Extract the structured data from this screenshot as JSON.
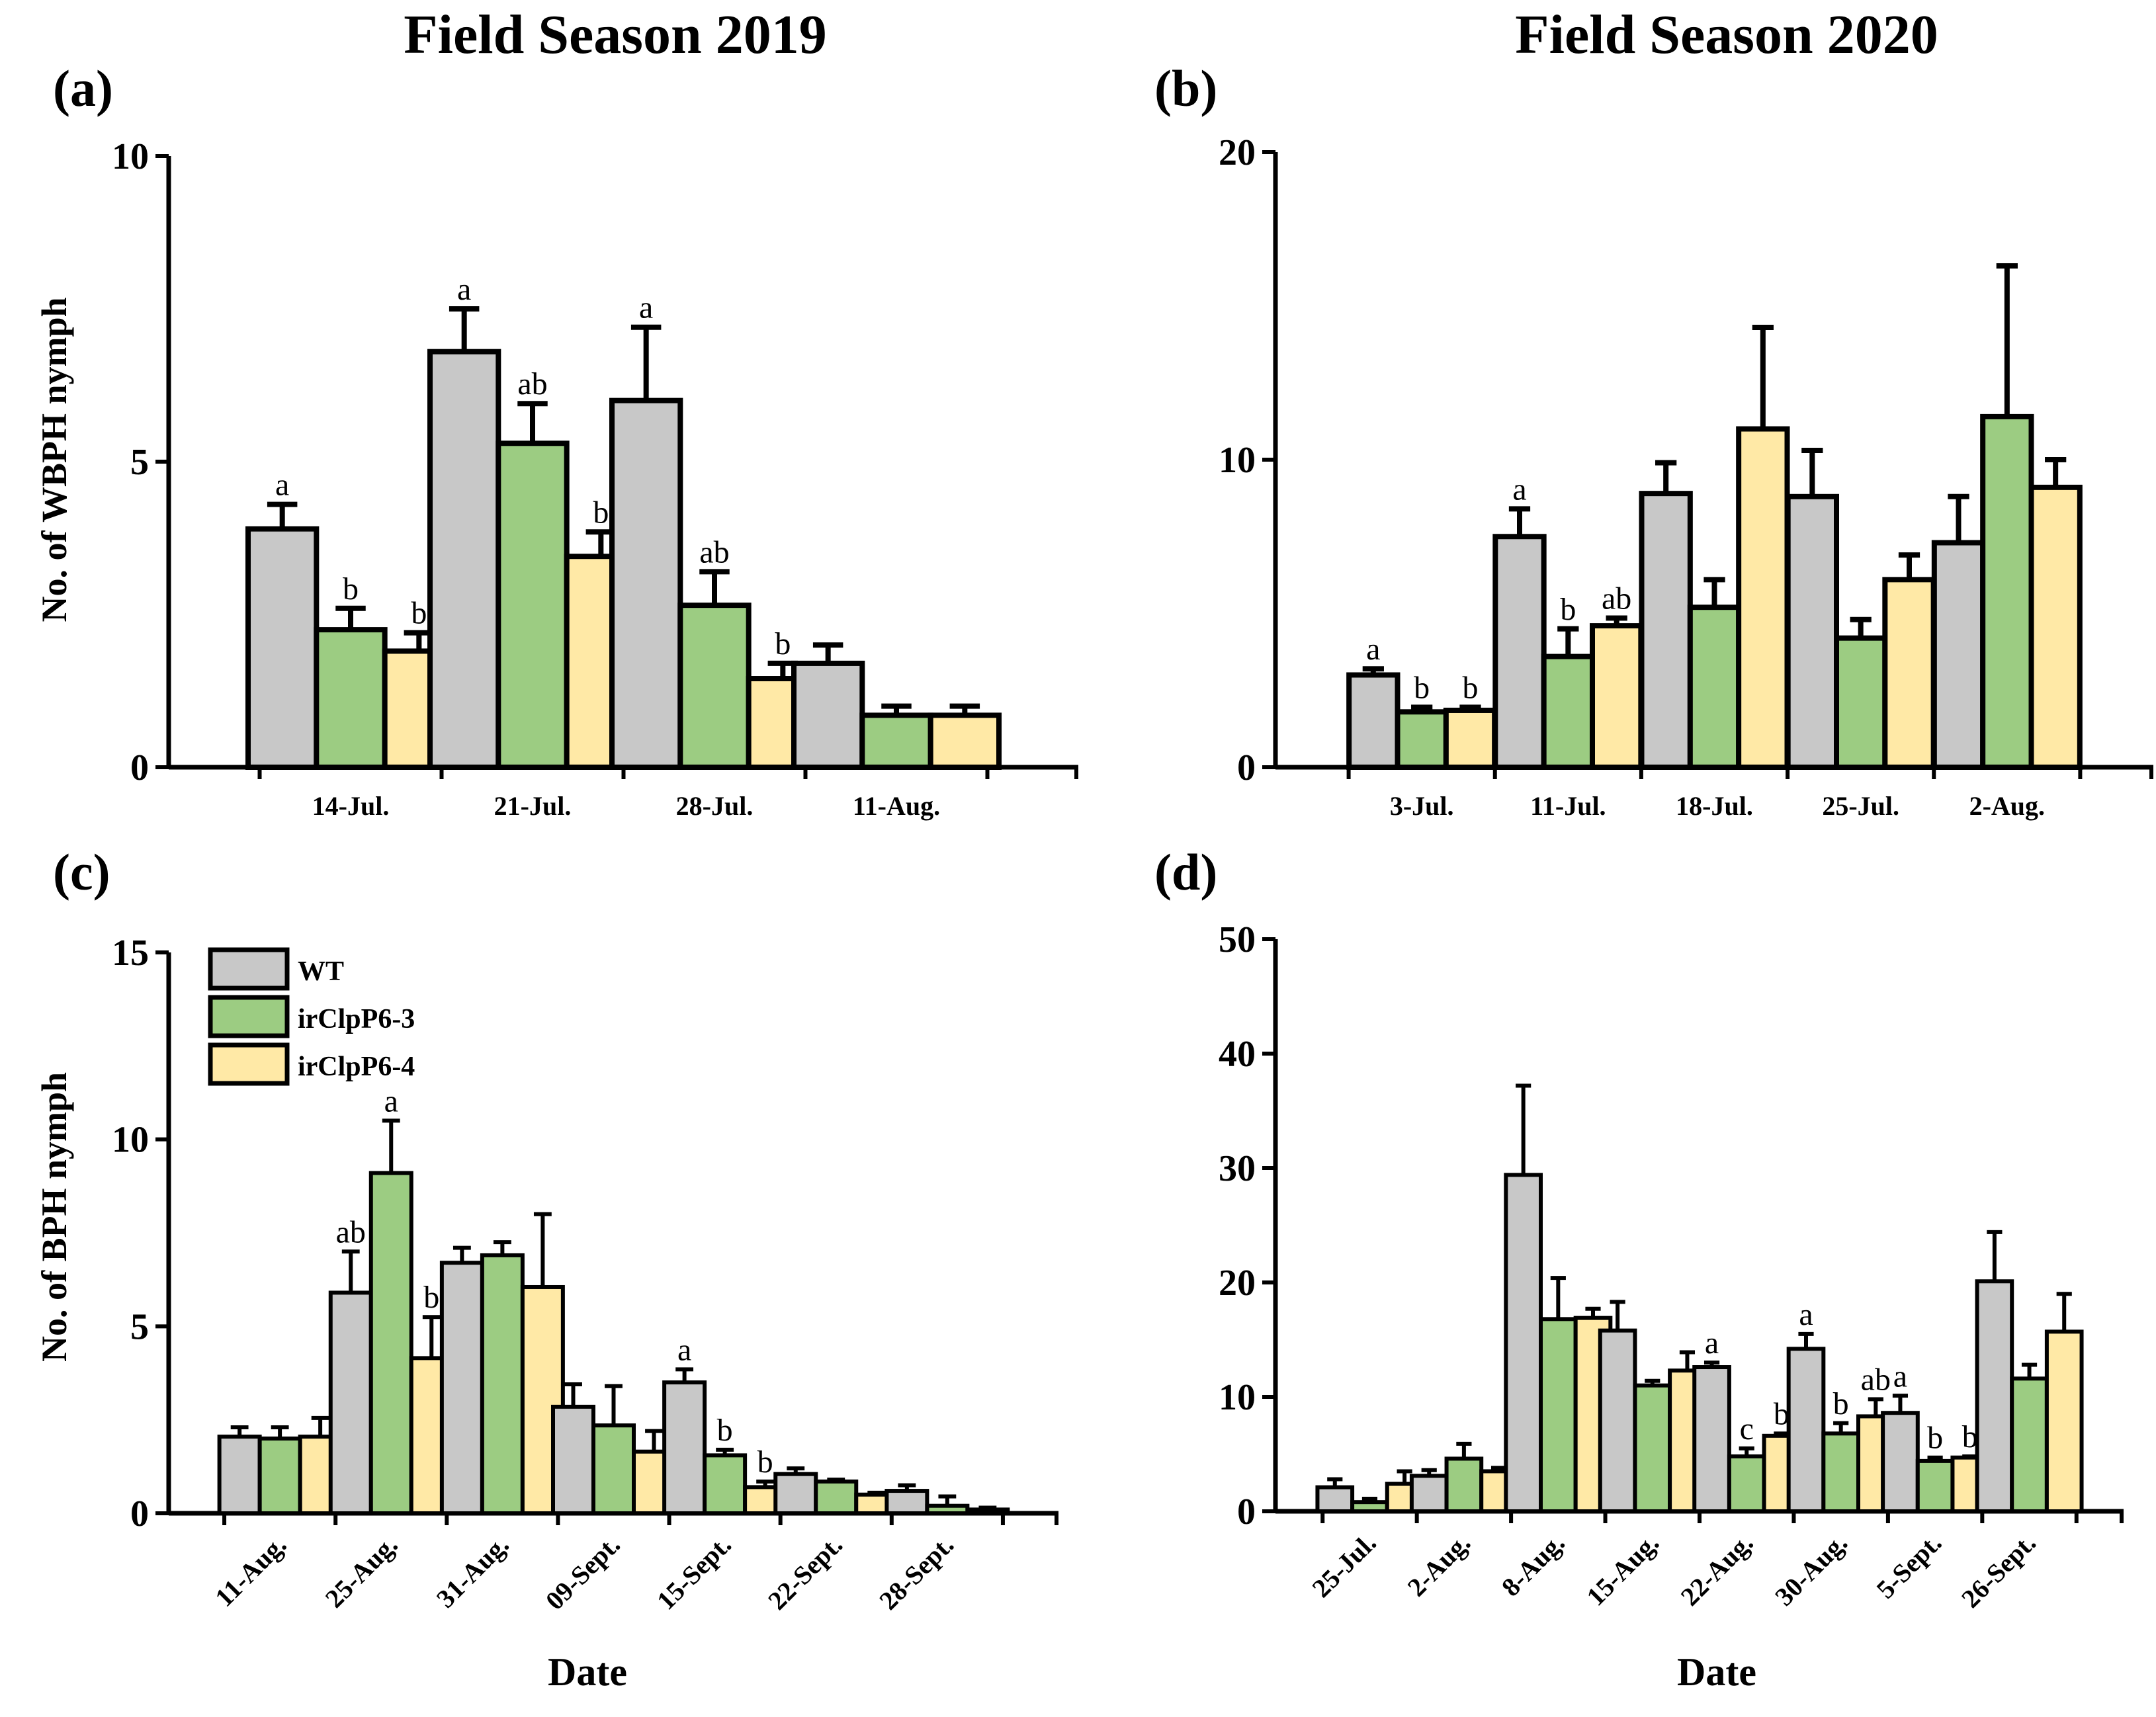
{
  "titles": {
    "left": "Field Season 2019",
    "right": "Field Season 2020"
  },
  "legend": {
    "entries": [
      {
        "name": "WT",
        "color": "#c8c8c8"
      },
      {
        "name": "irClpP6-3",
        "color": "#9ccc82"
      },
      {
        "name": "irClpP6-4",
        "color": "#ffe9a6"
      }
    ]
  },
  "chart_data": [
    {
      "id": "a",
      "panel_label": "(a)",
      "type": "bar",
      "ylabel": "No. of WBPH nymph",
      "xlabel": "",
      "ylim": [
        0,
        10
      ],
      "yticks": [
        0,
        5,
        10
      ],
      "categories": [
        "14-Jul.",
        "21-Jul.",
        "28-Jul.",
        "11-Aug."
      ],
      "series": [
        {
          "name": "WT",
          "values": [
            3.9,
            6.8,
            6.0,
            1.7
          ],
          "errors": [
            0.4,
            0.7,
            1.2,
            0.3
          ],
          "sig": [
            "a",
            "a",
            "a",
            ""
          ]
        },
        {
          "name": "irClpP6-3",
          "values": [
            2.25,
            5.3,
            2.65,
            0.85
          ],
          "errors": [
            0.35,
            0.65,
            0.55,
            0.15
          ],
          "sig": [
            "b",
            "ab",
            "ab",
            ""
          ]
        },
        {
          "name": "irClpP6-4",
          "values": [
            1.9,
            3.45,
            1.45,
            0.85
          ],
          "errors": [
            0.3,
            0.4,
            0.25,
            0.15
          ],
          "sig": [
            "b",
            "b",
            "b",
            ""
          ]
        }
      ]
    },
    {
      "id": "b",
      "panel_label": "(b)",
      "type": "bar",
      "ylabel": "",
      "xlabel": "",
      "ylim": [
        0,
        20
      ],
      "yticks": [
        0,
        10,
        20
      ],
      "categories": [
        "3-Jul.",
        "11-Jul.",
        "18-Jul.",
        "25-Jul.",
        "2-Aug."
      ],
      "series": [
        {
          "name": "WT",
          "values": [
            3.0,
            7.5,
            8.9,
            8.8,
            7.3
          ],
          "errors": [
            0.2,
            0.9,
            1.0,
            1.5,
            1.5
          ],
          "sig": [
            "a",
            "a",
            "",
            "",
            ""
          ]
        },
        {
          "name": "irClpP6-3",
          "values": [
            1.8,
            3.6,
            5.2,
            4.2,
            11.4
          ],
          "errors": [
            0.15,
            0.9,
            0.9,
            0.6,
            4.9
          ],
          "sig": [
            "b",
            "b",
            "",
            "",
            ""
          ]
        },
        {
          "name": "irClpP6-4",
          "values": [
            1.85,
            4.6,
            11.0,
            6.1,
            9.1
          ],
          "errors": [
            0.1,
            0.25,
            3.3,
            0.8,
            0.9
          ],
          "sig": [
            "b",
            "ab",
            "",
            "",
            ""
          ]
        }
      ]
    },
    {
      "id": "c",
      "panel_label": "(c)",
      "type": "bar",
      "ylabel": "No. of BPH nymph",
      "xlabel": "Date",
      "ylim": [
        0,
        15
      ],
      "yticks": [
        0,
        5,
        10,
        15
      ],
      "categories": [
        "11-Aug.",
        "25-Aug.",
        "31-Aug.",
        "09-Sept.",
        "15-Sept.",
        "22-Sept.",
        "28-Sept."
      ],
      "series": [
        {
          "name": "WT",
          "values": [
            2.05,
            5.9,
            6.7,
            2.85,
            3.5,
            1.05,
            0.6
          ],
          "errors": [
            0.25,
            1.1,
            0.4,
            0.6,
            0.35,
            0.15,
            0.15
          ],
          "sig": [
            "",
            "ab",
            "",
            "",
            "a",
            "",
            ""
          ]
        },
        {
          "name": "irClpP6-3",
          "values": [
            2.0,
            9.1,
            6.9,
            2.35,
            1.55,
            0.85,
            0.2
          ],
          "errors": [
            0.3,
            1.4,
            0.35,
            1.05,
            0.15,
            0.05,
            0.25
          ],
          "sig": [
            "",
            "a",
            "",
            "",
            "b",
            "",
            ""
          ]
        },
        {
          "name": "irClpP6-4",
          "values": [
            2.05,
            4.15,
            6.05,
            1.65,
            0.7,
            0.5,
            0.1
          ],
          "errors": [
            0.5,
            1.1,
            1.95,
            0.55,
            0.15,
            0.05,
            0.05
          ],
          "sig": [
            "",
            "b",
            "",
            "",
            "b",
            "",
            ""
          ]
        }
      ]
    },
    {
      "id": "d",
      "panel_label": "(d)",
      "type": "bar",
      "ylabel": "",
      "xlabel": "Date",
      "ylim": [
        0,
        50
      ],
      "yticks": [
        0,
        10,
        20,
        30,
        40,
        50
      ],
      "categories": [
        "25-Jul.",
        "2-Aug.",
        "8-Aug.",
        "15-Aug.",
        "22-Aug.",
        "30-Aug.",
        "5-Sept.",
        "26-Sept."
      ],
      "series": [
        {
          "name": "WT",
          "values": [
            2.1,
            3.1,
            29.4,
            15.8,
            12.6,
            14.2,
            8.6,
            20.1
          ],
          "errors": [
            0.7,
            0.5,
            7.8,
            2.5,
            0.4,
            1.3,
            1.5,
            4.3
          ],
          "sig": [
            "",
            "",
            "",
            "",
            "a",
            "a",
            "a",
            ""
          ]
        },
        {
          "name": "irClpP6-3",
          "values": [
            0.8,
            4.6,
            16.8,
            11.0,
            4.8,
            6.8,
            4.4,
            11.6
          ],
          "errors": [
            0.3,
            1.3,
            3.6,
            0.4,
            0.7,
            0.9,
            0.3,
            1.2
          ],
          "sig": [
            "",
            "",
            "",
            "",
            "c",
            "b",
            "b",
            ""
          ]
        },
        {
          "name": "irClpP6-4",
          "values": [
            2.4,
            3.5,
            16.9,
            12.3,
            6.6,
            8.3,
            4.7,
            15.7
          ],
          "errors": [
            1.1,
            0.3,
            0.8,
            1.6,
            0.2,
            1.5,
            0.1,
            3.3
          ],
          "sig": [
            "",
            "",
            "",
            "",
            "b",
            "ab",
            "b",
            ""
          ]
        }
      ]
    }
  ]
}
